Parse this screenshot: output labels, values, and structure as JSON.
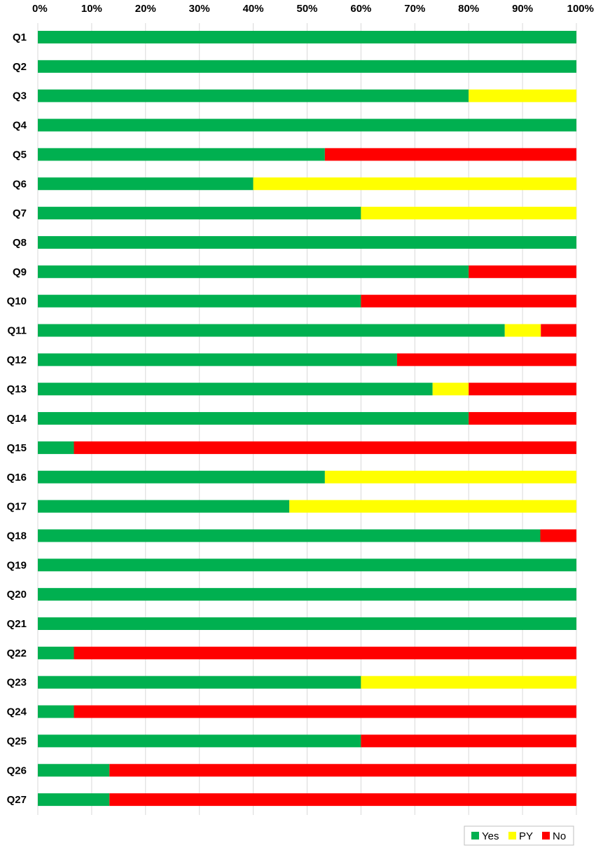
{
  "chart_data": {
    "type": "bar",
    "orientation": "horizontal",
    "stacked": true,
    "percent_stacked": true,
    "title": "",
    "xlabel": "",
    "ylabel": "",
    "xlim": [
      0,
      100
    ],
    "xticks": [
      "0%",
      "10%",
      "20%",
      "30%",
      "40%",
      "50%",
      "60%",
      "70%",
      "80%",
      "90%",
      "100%"
    ],
    "x_axis_position": "top",
    "grid": true,
    "legend_position": "bottom-right",
    "categories": [
      "Q1",
      "Q2",
      "Q3",
      "Q4",
      "Q5",
      "Q6",
      "Q7",
      "Q8",
      "Q9",
      "Q10",
      "Q11",
      "Q12",
      "Q13",
      "Q14",
      "Q15",
      "Q16",
      "Q17",
      "Q18",
      "Q19",
      "Q20",
      "Q21",
      "Q22",
      "Q23",
      "Q24",
      "Q25",
      "Q26",
      "Q27"
    ],
    "series": [
      {
        "name": "Yes",
        "color": "#00b050",
        "values": [
          100,
          100,
          80,
          100,
          53.3,
          40,
          60,
          100,
          80,
          60,
          86.7,
          66.7,
          73.3,
          80,
          6.7,
          53.3,
          46.7,
          93.3,
          100,
          100,
          100,
          6.7,
          60,
          6.7,
          60,
          13.3,
          13.3
        ]
      },
      {
        "name": "PY",
        "color": "#ffff00",
        "values": [
          0,
          0,
          20,
          0,
          0,
          60,
          40,
          0,
          0,
          0,
          6.7,
          0,
          6.7,
          0,
          0,
          46.7,
          53.3,
          0,
          0,
          0,
          0,
          0,
          40,
          0,
          0,
          0,
          0
        ]
      },
      {
        "name": "No",
        "color": "#ff0000",
        "values": [
          0,
          0,
          0,
          0,
          46.7,
          0,
          0,
          0,
          20,
          40,
          6.6,
          33.3,
          20,
          20,
          93.3,
          0,
          0,
          6.7,
          0,
          0,
          0,
          93.3,
          0,
          93.3,
          40,
          86.7,
          86.7
        ]
      }
    ]
  }
}
